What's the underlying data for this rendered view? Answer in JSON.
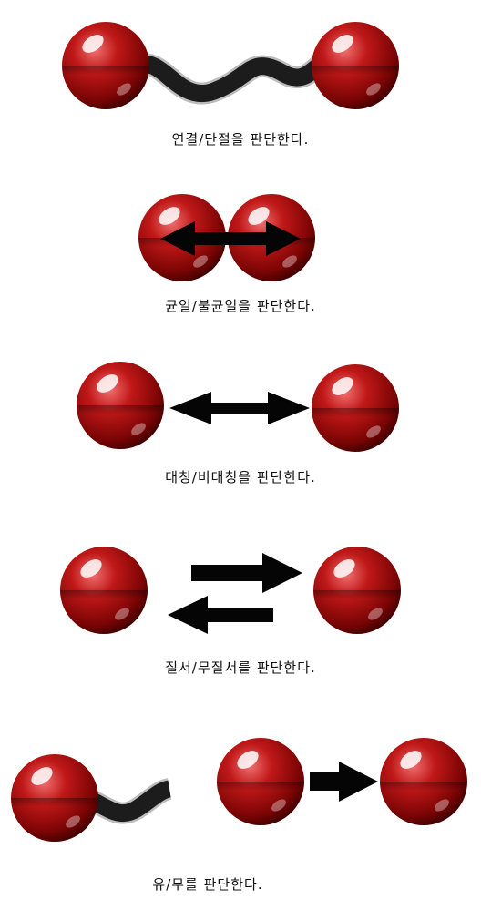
{
  "colors": {
    "sphere_light": "#e85a5a",
    "sphere_mid": "#b81414",
    "sphere_dark": "#4a0000",
    "bond": "#1c1c1c",
    "arrow": "#050505"
  },
  "panels": [
    {
      "caption": "연결/단절을 판단한다."
    },
    {
      "caption": "균일/불균일을 판단한다."
    },
    {
      "caption": "대칭/비대칭을 판단한다."
    },
    {
      "caption": "질서/무질서를 판단한다."
    },
    {
      "caption": "유/무를 판단한다."
    }
  ]
}
